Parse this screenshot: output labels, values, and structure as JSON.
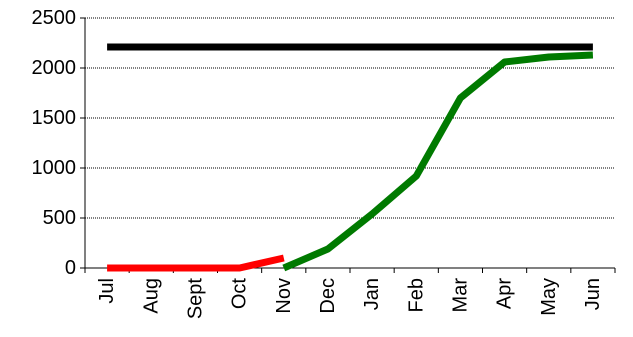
{
  "chart_data": {
    "type": "line",
    "title": "",
    "xlabel": "",
    "ylabel": "",
    "categories": [
      "Jul",
      "Aug",
      "Sept",
      "Oct",
      "Nov",
      "Dec",
      "Jan",
      "Feb",
      "Mar",
      "Apr",
      "May",
      "Jun"
    ],
    "ylim": [
      0,
      2500
    ],
    "yticks": [
      0,
      500,
      1000,
      1500,
      2000,
      2500
    ],
    "ytick_labels": [
      "0",
      "500",
      "1000",
      "1500",
      "2000",
      "2500"
    ],
    "grid": "horizontal",
    "legend": "none",
    "series": [
      {
        "color": "#000000",
        "values": [
          2210,
          2210,
          2210,
          2210,
          2210,
          2210,
          2210,
          2210,
          2210,
          2210,
          2210,
          2210
        ]
      },
      {
        "color": "#007a00",
        "values": [
          null,
          null,
          null,
          null,
          0,
          190,
          540,
          920,
          1700,
          2060,
          2110,
          2130
        ]
      },
      {
        "color": "#ff0000",
        "values": [
          0,
          0,
          0,
          0,
          100,
          null,
          null,
          null,
          null,
          null,
          null,
          null
        ]
      }
    ]
  }
}
